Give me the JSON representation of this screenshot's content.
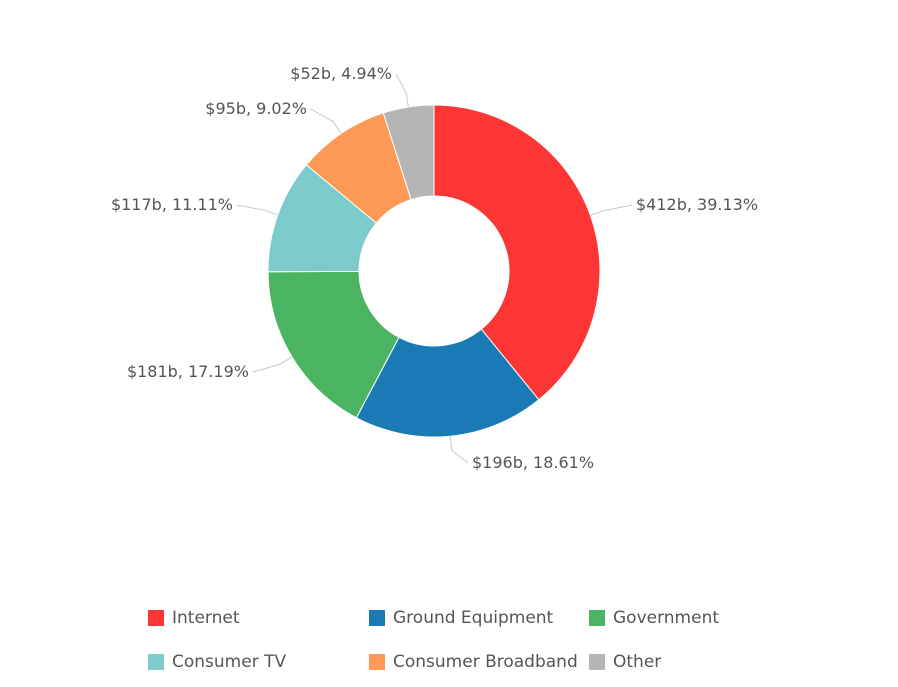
{
  "chart_data": {
    "type": "pie",
    "donut": true,
    "legend_position": "bottom",
    "slices": [
      {
        "name": "Internet",
        "value": 412,
        "percent": 39.13,
        "label": "$412b, 39.13%",
        "color": "#fc3535"
      },
      {
        "name": "Ground Equipment",
        "value": 196,
        "percent": 18.61,
        "label": "$196b, 18.61%",
        "color": "#1a7ab5"
      },
      {
        "name": "Government",
        "value": 181,
        "percent": 17.19,
        "label": "$181b, 17.19%",
        "color": "#4ab462"
      },
      {
        "name": "Consumer TV",
        "value": 117,
        "percent": 11.11,
        "label": "$117b, 11.11%",
        "color": "#7ccaca"
      },
      {
        "name": "Consumer Broadband",
        "value": 95,
        "percent": 9.02,
        "label": "$95b, 9.02%",
        "color": "#fd9a57"
      },
      {
        "name": "Other",
        "value": 52,
        "percent": 4.94,
        "label": "$52b, 4.94%",
        "color": "#b5b5b5"
      }
    ]
  }
}
